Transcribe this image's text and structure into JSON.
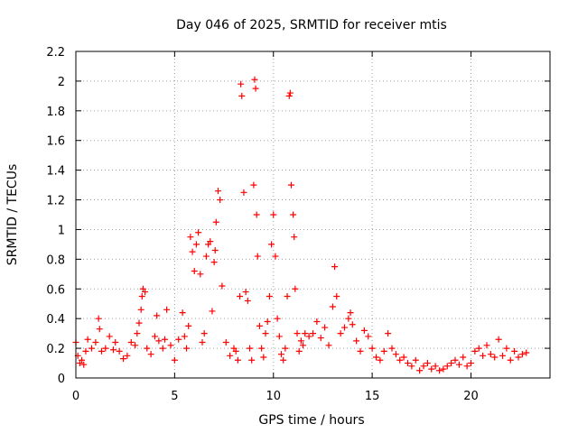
{
  "chart_data": {
    "type": "scatter",
    "title": "Day 046 of 2025, SRMTID for receiver mtis",
    "xlabel": "GPS time / hours",
    "ylabel": "SRMTID / TECUs",
    "xlim": [
      0,
      24
    ],
    "ylim": [
      0,
      2.2
    ],
    "xticks": [
      0,
      5,
      10,
      15,
      20
    ],
    "xtick_labels": [
      "0",
      "5",
      "10",
      "15",
      "20"
    ],
    "yticks": [
      0,
      0.2,
      0.4,
      0.6,
      0.8,
      1.0,
      1.2,
      1.4,
      1.6,
      1.8,
      2.0,
      2.2
    ],
    "ytick_labels": [
      "0",
      "0.2",
      "0.4",
      "0.6",
      "0.8",
      "1",
      "1.2",
      "1.4",
      "1.6",
      "1.8",
      "2",
      "2.2"
    ],
    "grid": true,
    "marker": "+",
    "series": [
      {
        "name": "SRMTID",
        "color": "#ff0000",
        "x": [
          0.0,
          0.1,
          0.2,
          0.3,
          0.4,
          0.5,
          0.6,
          0.8,
          1.0,
          1.15,
          1.2,
          1.3,
          1.5,
          1.7,
          1.9,
          2.0,
          2.2,
          2.4,
          2.6,
          2.8,
          3.0,
          3.1,
          3.2,
          3.3,
          3.35,
          3.4,
          3.5,
          3.6,
          3.8,
          4.0,
          4.1,
          4.2,
          4.4,
          4.5,
          4.6,
          4.8,
          5.0,
          5.2,
          5.4,
          5.5,
          5.6,
          5.7,
          5.8,
          5.9,
          6.0,
          6.1,
          6.2,
          6.3,
          6.4,
          6.5,
          6.6,
          6.7,
          6.8,
          6.9,
          7.0,
          7.05,
          7.1,
          7.2,
          7.3,
          7.4,
          7.6,
          7.8,
          8.0,
          8.1,
          8.2,
          8.3,
          8.35,
          8.4,
          8.5,
          8.6,
          8.7,
          8.8,
          8.9,
          9.0,
          9.05,
          9.1,
          9.15,
          9.2,
          9.3,
          9.4,
          9.5,
          9.6,
          9.7,
          9.8,
          9.9,
          10.0,
          10.1,
          10.2,
          10.3,
          10.4,
          10.5,
          10.6,
          10.7,
          10.8,
          10.85,
          10.9,
          11.0,
          11.05,
          11.1,
          11.2,
          11.3,
          11.4,
          11.5,
          11.6,
          11.8,
          12.0,
          12.2,
          12.4,
          12.6,
          12.8,
          13.0,
          13.1,
          13.2,
          13.4,
          13.6,
          13.8,
          13.9,
          14.0,
          14.2,
          14.4,
          14.6,
          14.8,
          15.0,
          15.2,
          15.4,
          15.6,
          15.8,
          16.0,
          16.2,
          16.4,
          16.6,
          16.8,
          17.0,
          17.2,
          17.4,
          17.6,
          17.8,
          18.0,
          18.2,
          18.4,
          18.6,
          18.8,
          19.0,
          19.2,
          19.4,
          19.6,
          19.8,
          20.0,
          20.2,
          20.4,
          20.6,
          20.8,
          21.0,
          21.2,
          21.4,
          21.6,
          21.8,
          22.0,
          22.2,
          22.4,
          22.6,
          22.8
        ],
        "y": [
          0.24,
          0.15,
          0.1,
          0.12,
          0.09,
          0.18,
          0.26,
          0.2,
          0.24,
          0.4,
          0.33,
          0.18,
          0.2,
          0.28,
          0.19,
          0.24,
          0.18,
          0.13,
          0.15,
          0.24,
          0.22,
          0.3,
          0.37,
          0.46,
          0.55,
          0.6,
          0.58,
          0.2,
          0.16,
          0.28,
          0.42,
          0.25,
          0.2,
          0.26,
          0.46,
          0.22,
          0.12,
          0.26,
          0.44,
          0.28,
          0.2,
          0.35,
          0.95,
          0.85,
          0.72,
          0.9,
          0.98,
          0.7,
          0.24,
          0.3,
          0.82,
          0.9,
          0.92,
          0.45,
          0.78,
          0.86,
          1.05,
          1.26,
          1.2,
          0.62,
          0.24,
          0.15,
          0.2,
          0.18,
          0.12,
          0.55,
          1.98,
          1.9,
          1.25,
          0.58,
          0.52,
          0.2,
          0.12,
          1.3,
          2.01,
          1.95,
          1.1,
          0.82,
          0.35,
          0.2,
          0.14,
          0.3,
          0.38,
          0.55,
          0.9,
          1.1,
          0.82,
          0.4,
          0.28,
          0.16,
          0.12,
          0.2,
          0.55,
          1.9,
          1.92,
          1.3,
          1.1,
          0.95,
          0.6,
          0.3,
          0.18,
          0.25,
          0.22,
          0.3,
          0.28,
          0.3,
          0.38,
          0.27,
          0.34,
          0.22,
          0.48,
          0.75,
          0.55,
          0.3,
          0.34,
          0.4,
          0.44,
          0.36,
          0.25,
          0.18,
          0.32,
          0.28,
          0.2,
          0.14,
          0.12,
          0.18,
          0.3,
          0.2,
          0.16,
          0.12,
          0.14,
          0.1,
          0.08,
          0.12,
          0.05,
          0.08,
          0.1,
          0.06,
          0.08,
          0.05,
          0.06,
          0.08,
          0.1,
          0.12,
          0.09,
          0.14,
          0.08,
          0.1,
          0.18,
          0.2,
          0.15,
          0.22,
          0.16,
          0.14,
          0.26,
          0.15,
          0.2,
          0.12,
          0.18,
          0.14,
          0.16,
          0.17
        ]
      }
    ]
  }
}
